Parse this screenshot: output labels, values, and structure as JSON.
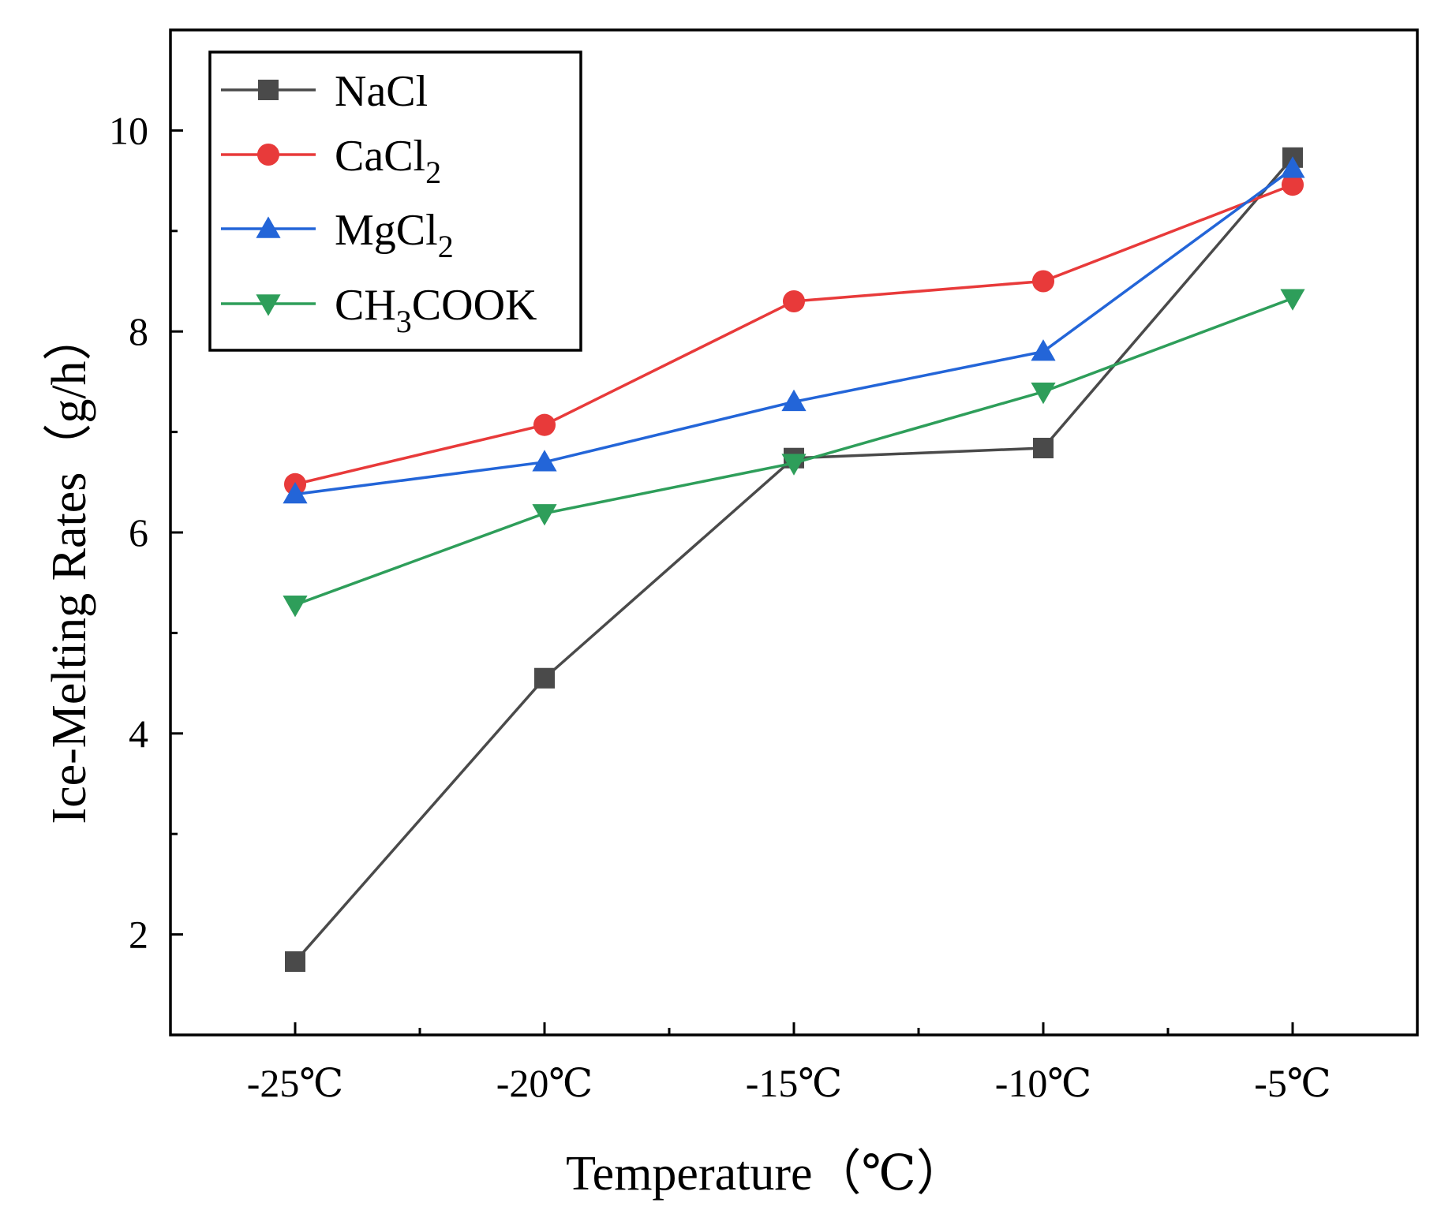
{
  "chart_data": {
    "type": "line",
    "title": "",
    "xlabel": "Temperature（℃）",
    "ylabel": "Ice-Melting Rates（g/h）",
    "categories": [
      "-25℃",
      "-20℃",
      "-15℃",
      "-10℃",
      "-5℃"
    ],
    "ylim": [
      1,
      11
    ],
    "yticks": [
      2,
      4,
      6,
      8,
      10
    ],
    "grid": false,
    "legend_position": "top-left",
    "series": [
      {
        "name": "NaCl",
        "label_base": "NaCl",
        "label_sub": "",
        "label_tail": "",
        "marker": "square",
        "color": "#4a4a4a",
        "values": [
          1.73,
          4.55,
          6.74,
          6.84,
          9.73
        ]
      },
      {
        "name": "CaCl2",
        "label_base": "CaCl",
        "label_sub": "2",
        "label_tail": "",
        "marker": "circle",
        "color": "#e83a3a",
        "values": [
          6.48,
          7.07,
          8.3,
          8.5,
          9.46
        ]
      },
      {
        "name": "MgCl2",
        "label_base": "MgCl",
        "label_sub": "2",
        "label_tail": "",
        "marker": "triangle-up",
        "color": "#2365d8",
        "values": [
          6.38,
          6.7,
          7.3,
          7.8,
          9.62
        ]
      },
      {
        "name": "CH3COOK",
        "label_base": "CH",
        "label_sub": "3",
        "label_tail": "COOK",
        "marker": "triangle-down",
        "color": "#2e9e5a",
        "values": [
          5.28,
          6.19,
          6.69,
          7.4,
          8.33
        ]
      }
    ]
  }
}
